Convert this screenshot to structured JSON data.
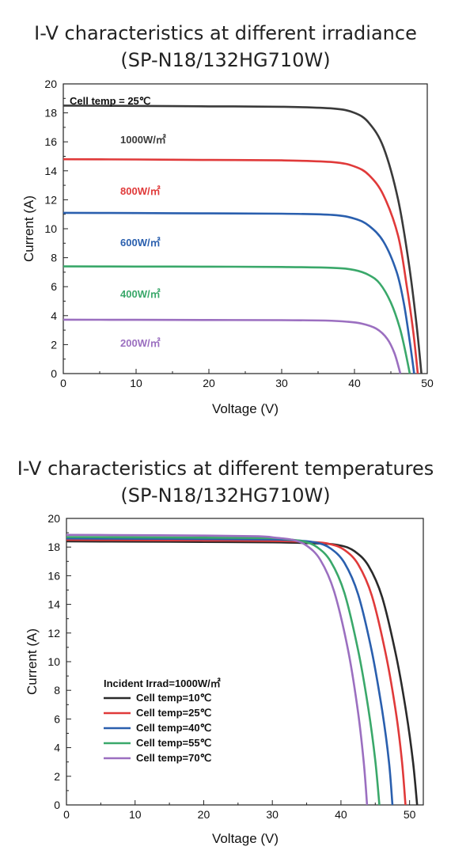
{
  "chart_data": [
    {
      "type": "line",
      "title": "I-V characteristics at different irradiance",
      "subtitle": "(SP-N18/132HG710W)",
      "xlabel": "Voltage (V)",
      "ylabel": "Current (A)",
      "xlim": [
        0,
        50
      ],
      "ylim": [
        0,
        20
      ],
      "xticks": [
        0,
        10,
        20,
        30,
        40,
        50
      ],
      "yticks": [
        0,
        2,
        4,
        6,
        8,
        10,
        12,
        14,
        16,
        18,
        20
      ],
      "grid": false,
      "annotation": "Cell temp = 25℃",
      "series": [
        {
          "name": "1000W/㎡",
          "color": "#3a3a3a",
          "x": [
            0,
            10,
            20,
            30,
            37,
            40,
            42,
            44,
            46,
            47.5,
            48.5,
            49.2
          ],
          "y": [
            18.5,
            18.48,
            18.45,
            18.42,
            18.3,
            18.0,
            17.3,
            15.6,
            12.0,
            7.5,
            3.5,
            0
          ]
        },
        {
          "name": "800W/㎡",
          "color": "#e03a3a",
          "x": [
            0,
            10,
            20,
            30,
            37,
            40,
            42,
            44,
            46,
            47.2,
            48.1,
            48.7
          ],
          "y": [
            14.8,
            14.78,
            14.75,
            14.72,
            14.6,
            14.3,
            13.7,
            12.3,
            9.5,
            6.0,
            2.8,
            0
          ]
        },
        {
          "name": "600W/㎡",
          "color": "#2a5fae",
          "x": [
            0,
            10,
            20,
            30,
            37,
            40,
            42,
            44,
            45.8,
            46.8,
            47.6,
            48.2
          ],
          "y": [
            11.1,
            11.08,
            11.06,
            11.04,
            10.95,
            10.7,
            10.2,
            9.1,
            7.0,
            4.8,
            2.2,
            0
          ]
        },
        {
          "name": "400W/㎡",
          "color": "#3aa86a",
          "x": [
            0,
            10,
            20,
            30,
            37,
            40,
            42,
            43.5,
            45,
            46.2,
            47.0,
            47.6
          ],
          "y": [
            7.4,
            7.39,
            7.38,
            7.36,
            7.3,
            7.15,
            6.8,
            6.2,
            4.9,
            3.2,
            1.5,
            0
          ]
        },
        {
          "name": "200W/㎡",
          "color": "#9b6fc0",
          "x": [
            0,
            10,
            20,
            30,
            36,
            39,
            41,
            43,
            44.5,
            45.5,
            46.3
          ],
          "y": [
            3.72,
            3.71,
            3.7,
            3.69,
            3.66,
            3.58,
            3.45,
            3.1,
            2.4,
            1.4,
            0
          ]
        }
      ]
    },
    {
      "type": "line",
      "title": "I-V characteristics at different temperatures",
      "subtitle": "(SP-N18/132HG710W)",
      "xlabel": "Voltage (V)",
      "ylabel": "Current (A)",
      "xlim": [
        0,
        52
      ],
      "ylim": [
        0,
        20
      ],
      "xticks": [
        0,
        10,
        20,
        30,
        40,
        50
      ],
      "yticks": [
        0,
        2,
        4,
        6,
        8,
        10,
        12,
        14,
        16,
        18,
        20
      ],
      "grid": false,
      "legend_title": "Incident Irrad=1000W/㎡",
      "legend_position": "bottom-left",
      "series": [
        {
          "name": "Cell temp=10℃",
          "color": "#2a2a2a",
          "x": [
            0,
            10,
            20,
            30,
            37,
            40,
            42,
            44,
            46,
            48,
            49.5,
            50.5,
            51.1
          ],
          "y": [
            18.4,
            18.38,
            18.36,
            18.33,
            18.25,
            18.1,
            17.7,
            16.7,
            14.5,
            10.5,
            6.5,
            3.0,
            0
          ]
        },
        {
          "name": "Cell temp=25℃",
          "color": "#e03a3a",
          "x": [
            0,
            10,
            20,
            30,
            36,
            38.5,
            40.5,
            42.5,
            44.5,
            46.5,
            48,
            48.9,
            49.4
          ],
          "y": [
            18.5,
            18.48,
            18.46,
            18.43,
            18.35,
            18.2,
            17.8,
            16.8,
            14.6,
            10.6,
            6.5,
            3.0,
            0
          ]
        },
        {
          "name": "Cell temp=40℃",
          "color": "#2a5fae",
          "x": [
            0,
            10,
            20,
            30,
            34,
            36.5,
            38.5,
            40.5,
            42.5,
            44.5,
            46,
            47,
            47.5
          ],
          "y": [
            18.6,
            18.58,
            18.56,
            18.53,
            18.45,
            18.3,
            17.9,
            16.9,
            14.7,
            10.7,
            6.6,
            3.0,
            0
          ]
        },
        {
          "name": "Cell temp=55℃",
          "color": "#3aa86a",
          "x": [
            0,
            10,
            20,
            30,
            32,
            34.5,
            36.5,
            38.5,
            40.5,
            42.5,
            44,
            45,
            45.6
          ],
          "y": [
            18.7,
            18.68,
            18.66,
            18.63,
            18.55,
            18.4,
            18.0,
            17.0,
            14.8,
            10.8,
            6.7,
            3.1,
            0
          ]
        },
        {
          "name": "Cell temp=70℃",
          "color": "#9b6fc0",
          "x": [
            0,
            10,
            20,
            28,
            30.5,
            33,
            35,
            37,
            39,
            41,
            42.4,
            43.3,
            43.8
          ],
          "y": [
            18.85,
            18.83,
            18.8,
            18.75,
            18.65,
            18.5,
            18.1,
            17.1,
            14.9,
            10.9,
            6.8,
            3.1,
            0
          ]
        }
      ]
    }
  ]
}
